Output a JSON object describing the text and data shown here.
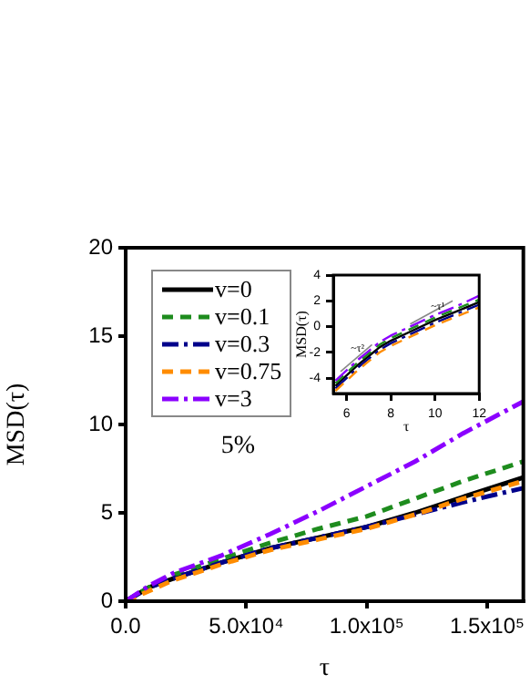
{
  "chart_data": [
    {
      "type": "line",
      "xlabel": "τ",
      "ylabel": "MSD(τ)",
      "x": [
        0,
        10000,
        20000,
        40000,
        60000,
        80000,
        100000,
        120000,
        140000,
        165000
      ],
      "xlim": [
        0,
        165000
      ],
      "xticks": [
        {
          "value": 0,
          "label": "0.0"
        },
        {
          "value": 50000,
          "label": "5.0x10⁴"
        },
        {
          "value": 100000,
          "label": "1.0x10⁵"
        },
        {
          "value": 150000,
          "label": "1.5x10⁵"
        }
      ],
      "ylim": [
        0,
        20
      ],
      "yticks": [
        0,
        5,
        10,
        15,
        20
      ],
      "legend": "top left",
      "annotations": [
        "5%"
      ],
      "series": [
        {
          "name": "v=0",
          "color": "#000000",
          "line_style": "solid",
          "values": [
            0,
            0.8,
            1.3,
            2.2,
            3.0,
            3.6,
            4.2,
            5.0,
            5.9,
            7.0
          ]
        },
        {
          "name": "v=0.1",
          "color": "#1e8c1e",
          "line_style": "dashed",
          "values": [
            0,
            0.8,
            1.5,
            2.4,
            3.3,
            4.1,
            4.8,
            5.8,
            6.8,
            7.9
          ]
        },
        {
          "name": "v=0.3",
          "color": "#00008b",
          "line_style": "dashdot",
          "values": [
            0,
            0.8,
            1.3,
            2.2,
            3.0,
            3.6,
            4.2,
            4.9,
            5.6,
            6.4
          ]
        },
        {
          "name": "v=0.75",
          "color": "#ff8c00",
          "line_style": "dashed",
          "values": [
            0,
            0.6,
            1.2,
            2.1,
            2.9,
            3.5,
            4.1,
            4.9,
            5.8,
            6.8
          ]
        },
        {
          "name": "v=3",
          "color": "#8b00ff",
          "line_style": "dashdot",
          "values": [
            0,
            0.9,
            1.6,
            2.6,
            3.8,
            5.1,
            6.5,
            7.9,
            9.5,
            11.3
          ]
        }
      ]
    },
    {
      "type": "line",
      "xlabel": "τ",
      "ylabel": "MSD(τ)",
      "x": [
        5.5,
        6,
        6.5,
        7,
        7.5,
        8,
        9,
        10,
        11,
        12
      ],
      "xlim": [
        5.4,
        12
      ],
      "xticks": [
        6,
        8,
        10,
        12
      ],
      "ylim": [
        -5.2,
        4
      ],
      "yticks": [
        -4,
        -2,
        0,
        2,
        4
      ],
      "annotations": [
        "~τ²",
        "~τ¹"
      ],
      "series": [
        {
          "color": "#000000",
          "line_style": "solid",
          "values": [
            -4.6,
            -3.8,
            -3.0,
            -2.3,
            -1.6,
            -1.1,
            -0.3,
            0.5,
            1.2,
            1.9
          ]
        },
        {
          "color": "#1e8c1e",
          "line_style": "dashed",
          "values": [
            -4.4,
            -3.6,
            -2.8,
            -2.1,
            -1.4,
            -0.9,
            -0.1,
            0.7,
            1.4,
            2.1
          ]
        },
        {
          "color": "#00008b",
          "line_style": "dashdot",
          "values": [
            -4.8,
            -4.0,
            -3.2,
            -2.5,
            -1.8,
            -1.3,
            -0.5,
            0.3,
            1.0,
            1.7
          ]
        },
        {
          "color": "#ff8c00",
          "line_style": "dashed",
          "values": [
            -5.0,
            -4.2,
            -3.4,
            -2.7,
            -2.0,
            -1.5,
            -0.7,
            0.1,
            0.8,
            1.5
          ]
        },
        {
          "color": "#8b00ff",
          "line_style": "dashdot",
          "values": [
            -4.2,
            -3.4,
            -2.6,
            -1.9,
            -1.2,
            -0.7,
            0.1,
            0.9,
            1.6,
            2.4
          ]
        },
        {
          "color": "#888888",
          "line_style": "solid",
          "x": [
            5.73,
            7.15
          ],
          "values": [
            -3.5,
            -1.4
          ]
        },
        {
          "color": "#888888",
          "line_style": "solid",
          "x": [
            8.88,
            10.8
          ],
          "values": [
            0.2,
            2.0
          ]
        }
      ]
    }
  ]
}
